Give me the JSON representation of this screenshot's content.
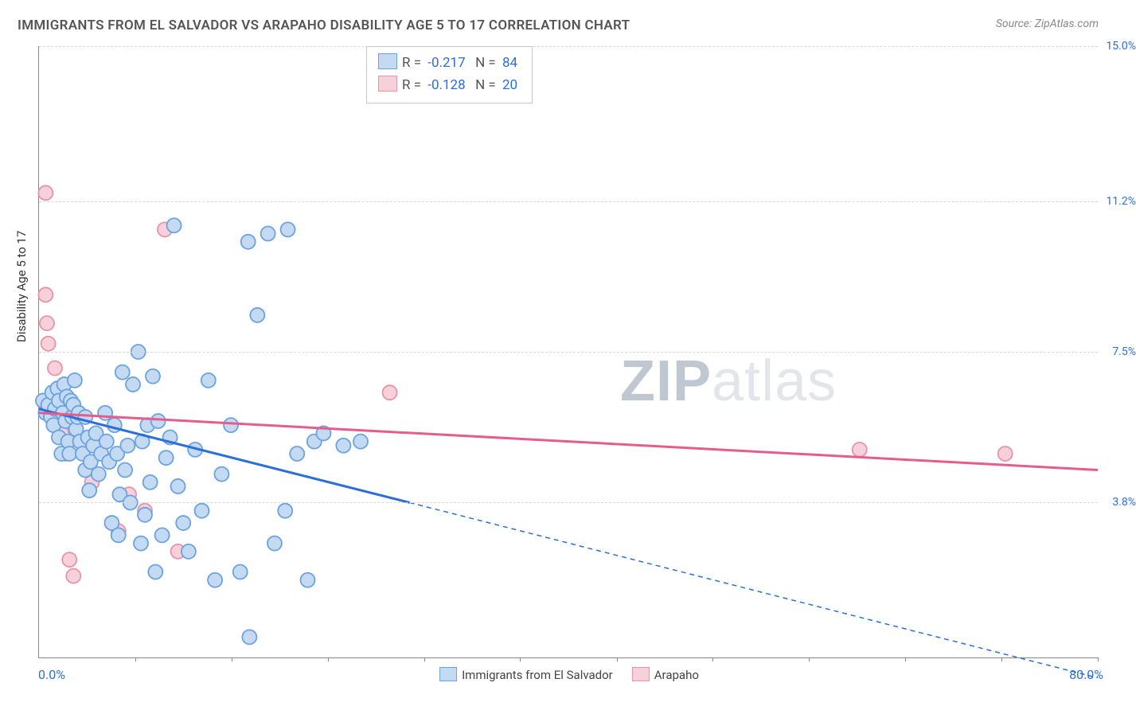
{
  "title": "IMMIGRANTS FROM EL SALVADOR VS ARAPAHO DISABILITY AGE 5 TO 17 CORRELATION CHART",
  "source": "Source: ZipAtlas.com",
  "ylabel": "Disability Age 5 to 17",
  "watermark_bold": "ZIP",
  "watermark_rest": "atlas",
  "chart": {
    "type": "scatter",
    "xlim": [
      0,
      80
    ],
    "ylim": [
      0,
      15
    ],
    "x_left_label": "0.0%",
    "x_right_label": "80.0%",
    "y_ticks": [
      3.8,
      7.5,
      11.2,
      15.0
    ],
    "y_tick_labels": [
      "3.8%",
      "7.5%",
      "11.2%",
      "15.0%"
    ],
    "x_minor_ticks": [
      7.27,
      14.55,
      21.82,
      29.09,
      36.36,
      43.64,
      50.91,
      58.18,
      65.45,
      72.73,
      80.0
    ],
    "grid_color": "#d8d8d8",
    "background_color": "#ffffff",
    "axis_color": "#888888",
    "marker_radius": 9,
    "marker_stroke_width": 1.8,
    "trend_line_width": 3,
    "trend_dash": "6,5",
    "series": [
      {
        "name": "Immigrants from El Salvador",
        "fill": "#c4daf3",
        "stroke": "#6aa3e0",
        "line_color": "#2a6fdb",
        "R": "-0.217",
        "N": "84",
        "trend": {
          "x1": 0,
          "y1": 6.1,
          "x2": 28,
          "y2": 3.8,
          "x_solid_end": 28,
          "x_dash_end": 80,
          "y_dash_end": -0.5
        },
        "points": [
          [
            0.3,
            6.3
          ],
          [
            0.5,
            6.0
          ],
          [
            0.7,
            6.2
          ],
          [
            0.9,
            5.9
          ],
          [
            1.0,
            6.5
          ],
          [
            1.1,
            5.7
          ],
          [
            1.2,
            6.1
          ],
          [
            1.4,
            6.6
          ],
          [
            1.5,
            5.4
          ],
          [
            1.5,
            6.3
          ],
          [
            1.7,
            5.0
          ],
          [
            1.8,
            6.0
          ],
          [
            1.9,
            6.7
          ],
          [
            2.0,
            5.8
          ],
          [
            2.1,
            6.4
          ],
          [
            2.2,
            5.3
          ],
          [
            2.3,
            5.0
          ],
          [
            2.4,
            6.3
          ],
          [
            2.5,
            5.9
          ],
          [
            2.6,
            6.2
          ],
          [
            2.7,
            6.8
          ],
          [
            2.8,
            5.6
          ],
          [
            2.9,
            5.9
          ],
          [
            3.0,
            6.0
          ],
          [
            3.1,
            5.3
          ],
          [
            3.3,
            5.0
          ],
          [
            3.5,
            4.6
          ],
          [
            3.5,
            5.9
          ],
          [
            3.7,
            5.4
          ],
          [
            3.8,
            4.1
          ],
          [
            3.9,
            4.8
          ],
          [
            4.1,
            5.2
          ],
          [
            4.3,
            5.5
          ],
          [
            4.5,
            4.5
          ],
          [
            4.7,
            5.0
          ],
          [
            5.0,
            6.0
          ],
          [
            5.1,
            5.3
          ],
          [
            5.3,
            4.8
          ],
          [
            5.5,
            3.3
          ],
          [
            5.7,
            5.7
          ],
          [
            5.9,
            5.0
          ],
          [
            6.0,
            3.0
          ],
          [
            6.1,
            4.0
          ],
          [
            6.3,
            7.0
          ],
          [
            6.5,
            4.6
          ],
          [
            6.7,
            5.2
          ],
          [
            6.9,
            3.8
          ],
          [
            7.1,
            6.7
          ],
          [
            7.5,
            7.5
          ],
          [
            7.7,
            2.8
          ],
          [
            7.8,
            5.3
          ],
          [
            8.0,
            3.5
          ],
          [
            8.2,
            5.7
          ],
          [
            8.4,
            4.3
          ],
          [
            8.6,
            6.9
          ],
          [
            8.8,
            2.1
          ],
          [
            9.0,
            5.8
          ],
          [
            9.3,
            3.0
          ],
          [
            9.6,
            4.9
          ],
          [
            9.9,
            5.4
          ],
          [
            10.2,
            10.6
          ],
          [
            10.5,
            4.2
          ],
          [
            10.9,
            3.3
          ],
          [
            11.3,
            2.6
          ],
          [
            11.8,
            5.1
          ],
          [
            12.3,
            3.6
          ],
          [
            12.8,
            6.8
          ],
          [
            13.3,
            1.9
          ],
          [
            13.8,
            4.5
          ],
          [
            14.5,
            5.7
          ],
          [
            15.2,
            2.1
          ],
          [
            15.8,
            10.2
          ],
          [
            15.9,
            0.5
          ],
          [
            16.5,
            8.4
          ],
          [
            17.3,
            10.4
          ],
          [
            17.8,
            2.8
          ],
          [
            18.6,
            3.6
          ],
          [
            18.8,
            10.5
          ],
          [
            19.5,
            5.0
          ],
          [
            20.3,
            1.9
          ],
          [
            20.8,
            5.3
          ],
          [
            21.5,
            5.5
          ],
          [
            23.0,
            5.2
          ],
          [
            24.3,
            5.3
          ]
        ]
      },
      {
        "name": "Arapaho",
        "fill": "#f7d1da",
        "stroke": "#e893aa",
        "line_color": "#e75c8d",
        "R": "-0.128",
        "N": "20",
        "trend": {
          "x1": 0,
          "y1": 6.0,
          "x2": 80,
          "y2": 4.6
        },
        "points": [
          [
            0.5,
            11.4
          ],
          [
            0.5,
            8.9
          ],
          [
            0.6,
            8.2
          ],
          [
            0.7,
            7.7
          ],
          [
            0.8,
            6.2
          ],
          [
            1.2,
            7.1
          ],
          [
            1.5,
            6.0
          ],
          [
            1.7,
            5.5
          ],
          [
            2.0,
            5.0
          ],
          [
            2.3,
            2.4
          ],
          [
            2.6,
            2.0
          ],
          [
            4.0,
            4.3
          ],
          [
            6.0,
            3.1
          ],
          [
            6.8,
            4.0
          ],
          [
            8.0,
            3.6
          ],
          [
            9.5,
            10.5
          ],
          [
            10.5,
            2.6
          ],
          [
            26.5,
            6.5
          ],
          [
            62.0,
            5.1
          ],
          [
            73.0,
            5.0
          ]
        ]
      }
    ]
  },
  "legend_bottom": {
    "items": [
      {
        "label": "Immigrants from El Salvador",
        "fill": "#c4daf3",
        "stroke": "#6aa3e0"
      },
      {
        "label": "Arapaho",
        "fill": "#f7d1da",
        "stroke": "#e893aa"
      }
    ]
  }
}
